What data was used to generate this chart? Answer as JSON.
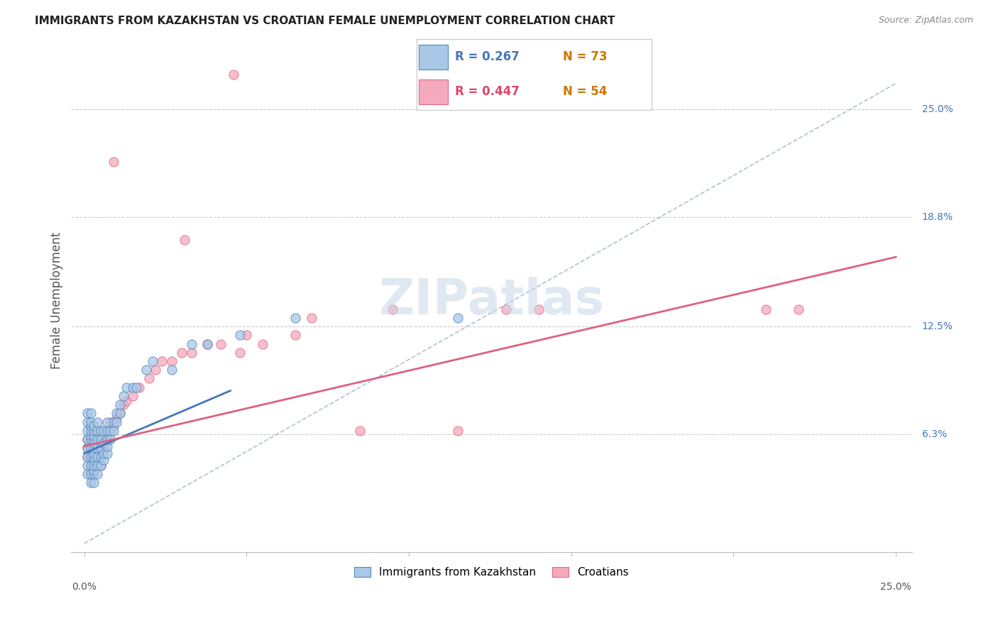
{
  "title": "IMMIGRANTS FROM KAZAKHSTAN VS CROATIAN FEMALE UNEMPLOYMENT CORRELATION CHART",
  "source": "Source: ZipAtlas.com",
  "ylabel": "Female Unemployment",
  "ytick_labels": [
    "25.0%",
    "18.8%",
    "12.5%",
    "6.3%"
  ],
  "ytick_values": [
    0.25,
    0.188,
    0.125,
    0.063
  ],
  "xtick_left_label": "0.0%",
  "xtick_right_label": "25.0%",
  "xmin": 0.0,
  "xmax": 0.25,
  "ymin": 0.0,
  "ymax": 0.28,
  "legend_r1": "R = 0.267",
  "legend_n1": "N = 73",
  "legend_r2": "R = 0.447",
  "legend_n2": "N = 54",
  "legend_label1": "Immigrants from Kazakhstan",
  "legend_label2": "Croatians",
  "blue_face": "#A8C8E8",
  "blue_edge": "#5588BB",
  "pink_face": "#F4AABC",
  "pink_edge": "#E06888",
  "blue_line": "#4477BB",
  "pink_line": "#E06080",
  "dash_color": "#AABBCC",
  "watermark_color": "#C8D8E8",
  "legend_r_blue": "#4477BB",
  "legend_n_blue": "#CC7700",
  "legend_r_pink": "#DD4466",
  "legend_n_pink": "#CC7700",
  "kaz_x": [
    0.001,
    0.001,
    0.001,
    0.001,
    0.001,
    0.001,
    0.001,
    0.001,
    0.002,
    0.002,
    0.002,
    0.002,
    0.002,
    0.002,
    0.002,
    0.002,
    0.002,
    0.002,
    0.002,
    0.003,
    0.003,
    0.003,
    0.003,
    0.003,
    0.003,
    0.003,
    0.003,
    0.003,
    0.003,
    0.003,
    0.003,
    0.003,
    0.004,
    0.004,
    0.004,
    0.004,
    0.004,
    0.004,
    0.004,
    0.005,
    0.005,
    0.005,
    0.005,
    0.005,
    0.006,
    0.006,
    0.006,
    0.006,
    0.007,
    0.007,
    0.007,
    0.007,
    0.007,
    0.008,
    0.008,
    0.009,
    0.009,
    0.01,
    0.01,
    0.011,
    0.011,
    0.012,
    0.013,
    0.015,
    0.016,
    0.019,
    0.021,
    0.027,
    0.033,
    0.038,
    0.048,
    0.065,
    0.115
  ],
  "kaz_y": [
    0.04,
    0.045,
    0.05,
    0.055,
    0.06,
    0.065,
    0.07,
    0.075,
    0.035,
    0.04,
    0.045,
    0.05,
    0.055,
    0.06,
    0.062,
    0.065,
    0.068,
    0.07,
    0.075,
    0.035,
    0.04,
    0.042,
    0.045,
    0.048,
    0.05,
    0.052,
    0.055,
    0.058,
    0.06,
    0.062,
    0.065,
    0.068,
    0.04,
    0.045,
    0.05,
    0.055,
    0.06,
    0.065,
    0.07,
    0.045,
    0.05,
    0.055,
    0.06,
    0.065,
    0.048,
    0.052,
    0.058,
    0.065,
    0.052,
    0.056,
    0.06,
    0.065,
    0.07,
    0.06,
    0.065,
    0.065,
    0.07,
    0.07,
    0.075,
    0.075,
    0.08,
    0.085,
    0.09,
    0.09,
    0.09,
    0.1,
    0.105,
    0.1,
    0.115,
    0.115,
    0.12,
    0.13,
    0.13
  ],
  "cro_x": [
    0.001,
    0.001,
    0.001,
    0.002,
    0.002,
    0.002,
    0.002,
    0.002,
    0.003,
    0.003,
    0.003,
    0.003,
    0.004,
    0.004,
    0.004,
    0.005,
    0.005,
    0.005,
    0.006,
    0.006,
    0.007,
    0.007,
    0.008,
    0.008,
    0.009,
    0.01,
    0.011,
    0.012,
    0.013,
    0.015,
    0.017,
    0.02,
    0.022,
    0.024,
    0.027,
    0.03,
    0.033,
    0.038,
    0.042,
    0.048,
    0.05,
    0.055,
    0.065,
    0.07,
    0.085,
    0.095,
    0.13,
    0.14,
    0.21,
    0.22,
    0.046,
    0.009,
    0.031,
    0.115
  ],
  "cro_y": [
    0.05,
    0.055,
    0.06,
    0.04,
    0.045,
    0.05,
    0.055,
    0.06,
    0.045,
    0.05,
    0.055,
    0.06,
    0.05,
    0.055,
    0.06,
    0.045,
    0.052,
    0.058,
    0.055,
    0.062,
    0.06,
    0.065,
    0.065,
    0.07,
    0.068,
    0.072,
    0.075,
    0.08,
    0.082,
    0.085,
    0.09,
    0.095,
    0.1,
    0.105,
    0.105,
    0.11,
    0.11,
    0.115,
    0.115,
    0.11,
    0.12,
    0.115,
    0.12,
    0.13,
    0.065,
    0.135,
    0.135,
    0.135,
    0.135,
    0.135,
    0.27,
    0.22,
    0.175,
    0.065
  ],
  "kaz_line_x": [
    0.0,
    0.045
  ],
  "kaz_line_y_start": 0.052,
  "kaz_line_y_end": 0.088,
  "cro_line_x": [
    0.0,
    0.25
  ],
  "cro_line_y_start": 0.056,
  "cro_line_y_end": 0.165,
  "dash_line_x": [
    0.0,
    0.25
  ],
  "dash_line_y": [
    0.0,
    0.265
  ]
}
